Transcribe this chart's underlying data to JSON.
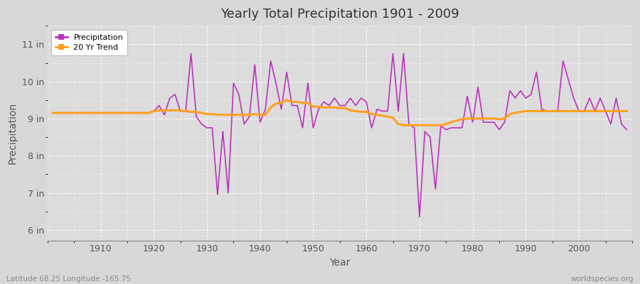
{
  "title": "Yearly Total Precipitation 1901 - 2009",
  "xlabel": "Year",
  "ylabel": "Precipitation",
  "lat_lon_label": "Latitude 68.25 Longitude -165.75",
  "watermark": "worldspecies.org",
  "bg_color": "#d8d8d8",
  "plot_bg_color": "#dcdcdc",
  "precip_color": "#bb33bb",
  "trend_color": "#ffa020",
  "ylim": [
    5.7,
    11.5
  ],
  "yticks": [
    6,
    7,
    8,
    9,
    10,
    11
  ],
  "ytick_labels": [
    "6 in",
    "7 in",
    "8 in",
    "9 in",
    "10 in",
    "11 in"
  ],
  "xlim": [
    1900,
    2010
  ],
  "xticks": [
    1910,
    1920,
    1930,
    1940,
    1950,
    1960,
    1970,
    1980,
    1990,
    2000
  ],
  "years": [
    1901,
    1902,
    1903,
    1904,
    1905,
    1906,
    1907,
    1908,
    1909,
    1910,
    1911,
    1912,
    1913,
    1914,
    1915,
    1916,
    1917,
    1918,
    1919,
    1920,
    1921,
    1922,
    1923,
    1924,
    1925,
    1926,
    1927,
    1928,
    1929,
    1930,
    1931,
    1932,
    1933,
    1934,
    1935,
    1936,
    1937,
    1938,
    1939,
    1940,
    1941,
    1942,
    1943,
    1944,
    1945,
    1946,
    1947,
    1948,
    1949,
    1950,
    1951,
    1952,
    1953,
    1954,
    1955,
    1956,
    1957,
    1958,
    1959,
    1960,
    1961,
    1962,
    1963,
    1964,
    1965,
    1966,
    1967,
    1968,
    1969,
    1970,
    1971,
    1972,
    1973,
    1974,
    1975,
    1976,
    1977,
    1978,
    1979,
    1980,
    1981,
    1982,
    1983,
    1984,
    1985,
    1986,
    1987,
    1988,
    1989,
    1990,
    1991,
    1992,
    1993,
    1994,
    1995,
    1996,
    1997,
    1998,
    1999,
    2000,
    2001,
    2002,
    2003,
    2004,
    2005,
    2006,
    2007,
    2008,
    2009
  ],
  "precip": [
    9.15,
    9.15,
    9.15,
    9.15,
    9.15,
    9.15,
    9.15,
    9.15,
    9.15,
    9.15,
    9.15,
    9.15,
    9.15,
    9.15,
    9.15,
    9.15,
    9.15,
    9.15,
    9.15,
    9.2,
    9.35,
    9.1,
    9.55,
    9.65,
    9.2,
    9.2,
    10.75,
    9.05,
    8.85,
    8.75,
    8.75,
    6.95,
    8.65,
    7.0,
    9.95,
    9.65,
    8.85,
    9.05,
    10.45,
    8.9,
    9.25,
    10.55,
    9.95,
    9.25,
    10.25,
    9.35,
    9.35,
    8.75,
    9.95,
    8.75,
    9.25,
    9.45,
    9.35,
    9.55,
    9.35,
    9.35,
    9.55,
    9.35,
    9.55,
    9.45,
    8.75,
    9.25,
    9.2,
    9.2,
    10.75,
    9.2,
    10.75,
    8.85,
    8.75,
    6.35,
    8.65,
    8.5,
    7.1,
    8.8,
    8.7,
    8.75,
    8.75,
    8.75,
    9.6,
    8.9,
    9.85,
    8.9,
    8.9,
    8.9,
    8.7,
    8.9,
    9.75,
    9.55,
    9.75,
    9.55,
    9.65,
    10.25,
    9.25,
    9.2,
    9.2,
    9.2,
    10.55,
    10.05,
    9.55,
    9.2,
    9.2,
    9.55,
    9.2,
    9.55,
    9.2,
    8.85,
    9.55,
    8.85,
    8.7
  ],
  "trend": [
    9.15,
    9.15,
    9.15,
    9.15,
    9.15,
    9.15,
    9.15,
    9.15,
    9.15,
    9.15,
    9.15,
    9.15,
    9.15,
    9.15,
    9.15,
    9.15,
    9.15,
    9.15,
    9.15,
    9.2,
    9.22,
    9.22,
    9.22,
    9.22,
    9.22,
    9.2,
    9.18,
    9.18,
    9.15,
    9.12,
    9.12,
    9.1,
    9.1,
    9.1,
    9.1,
    9.1,
    9.1,
    9.1,
    9.12,
    9.1,
    9.1,
    9.3,
    9.4,
    9.42,
    9.5,
    9.45,
    9.45,
    9.42,
    9.42,
    9.32,
    9.32,
    9.3,
    9.3,
    9.3,
    9.28,
    9.28,
    9.22,
    9.2,
    9.18,
    9.18,
    9.12,
    9.1,
    9.08,
    9.05,
    9.02,
    8.85,
    8.82,
    8.82,
    8.82,
    8.82,
    8.82,
    8.82,
    8.82,
    8.82,
    8.85,
    8.9,
    8.95,
    8.98,
    9.0,
    9.0,
    9.0,
    9.0,
    9.0,
    9.0,
    8.98,
    9.0,
    9.12,
    9.15,
    9.18,
    9.2,
    9.2,
    9.2,
    9.2,
    9.2,
    9.2,
    9.2,
    9.2,
    9.2,
    9.2,
    9.2,
    9.2,
    9.2,
    9.2,
    9.2,
    9.2,
    9.2,
    9.2,
    9.2,
    9.2
  ]
}
